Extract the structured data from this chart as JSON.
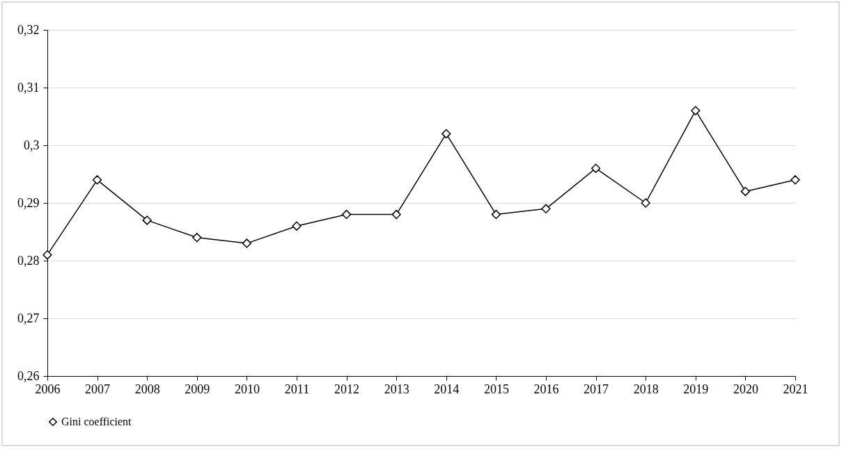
{
  "chart_data": {
    "type": "line",
    "categories": [
      "2006",
      "2007",
      "2008",
      "2009",
      "2010",
      "2011",
      "2012",
      "2013",
      "2014",
      "2015",
      "2016",
      "2017",
      "2018",
      "2019",
      "2020",
      "2021"
    ],
    "series": [
      {
        "name": "Gini coefficient",
        "color": "#000000",
        "values": [
          0.281,
          0.294,
          0.287,
          0.284,
          0.283,
          0.286,
          0.288,
          0.288,
          0.302,
          0.288,
          0.289,
          0.296,
          0.29,
          0.306,
          0.292,
          0.294
        ]
      }
    ],
    "ylim": [
      0.26,
      0.32
    ],
    "yticks": [
      {
        "value": 0.26,
        "label": "0,26"
      },
      {
        "value": 0.27,
        "label": "0,27"
      },
      {
        "value": 0.28,
        "label": "0,28"
      },
      {
        "value": 0.29,
        "label": "0,29"
      },
      {
        "value": 0.3,
        "label": "0,3"
      },
      {
        "value": 0.31,
        "label": "0,31"
      },
      {
        "value": 0.32,
        "label": "0,32"
      }
    ],
    "grid": "y",
    "legend": "bottom",
    "marker": "diamond",
    "line_style": "solid"
  }
}
